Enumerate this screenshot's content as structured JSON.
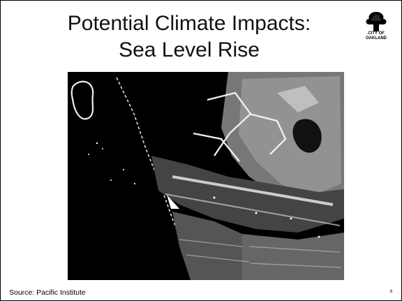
{
  "slide": {
    "title_line1": "Potential Climate Impacts:",
    "title_line2": "Sea Level Rise",
    "logo_text_line1": "CITY OF",
    "logo_text_line2": "OAKLAND",
    "source": "Source: Pacific Institute",
    "page_number": "6"
  },
  "image": {
    "description_icon": "satellite-map-image"
  }
}
